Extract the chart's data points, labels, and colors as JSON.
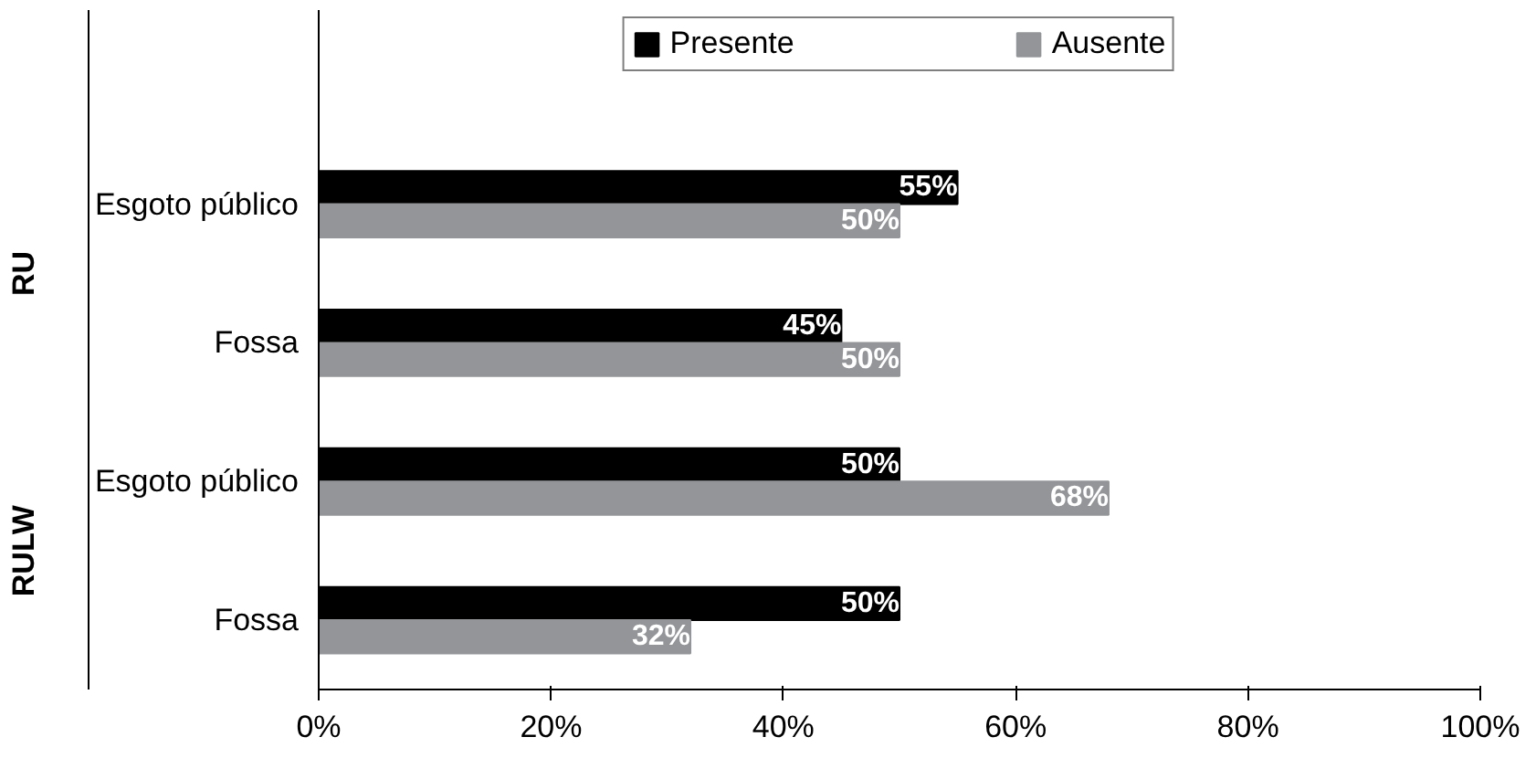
{
  "chart_data": {
    "type": "bar",
    "orientation": "horizontal",
    "categories": [
      "Esgoto público",
      "Fossa",
      "Esgoto público",
      "Fossa"
    ],
    "series": [
      {
        "name": "Presente",
        "color": "#000000",
        "values": [
          55,
          45,
          50,
          50
        ],
        "value_labels": [
          "55%",
          "45%",
          "50%",
          "50%"
        ]
      },
      {
        "name": "Ausente",
        "color": "#939598",
        "values": [
          50,
          50,
          68,
          32
        ],
        "value_labels": [
          "50%",
          "50%",
          "68%",
          "32%"
        ]
      }
    ],
    "xlim": [
      0,
      100
    ],
    "xticks": [
      {
        "value": 0,
        "label": "0%"
      },
      {
        "value": 20,
        "label": "20%"
      },
      {
        "value": 40,
        "label": "40%"
      },
      {
        "value": 60,
        "label": "60%"
      },
      {
        "value": 80,
        "label": "80%"
      },
      {
        "value": 100,
        "label": "100%"
      }
    ],
    "annotations": [
      "RU",
      "RULW"
    ],
    "legend": "top",
    "grid": false
  }
}
